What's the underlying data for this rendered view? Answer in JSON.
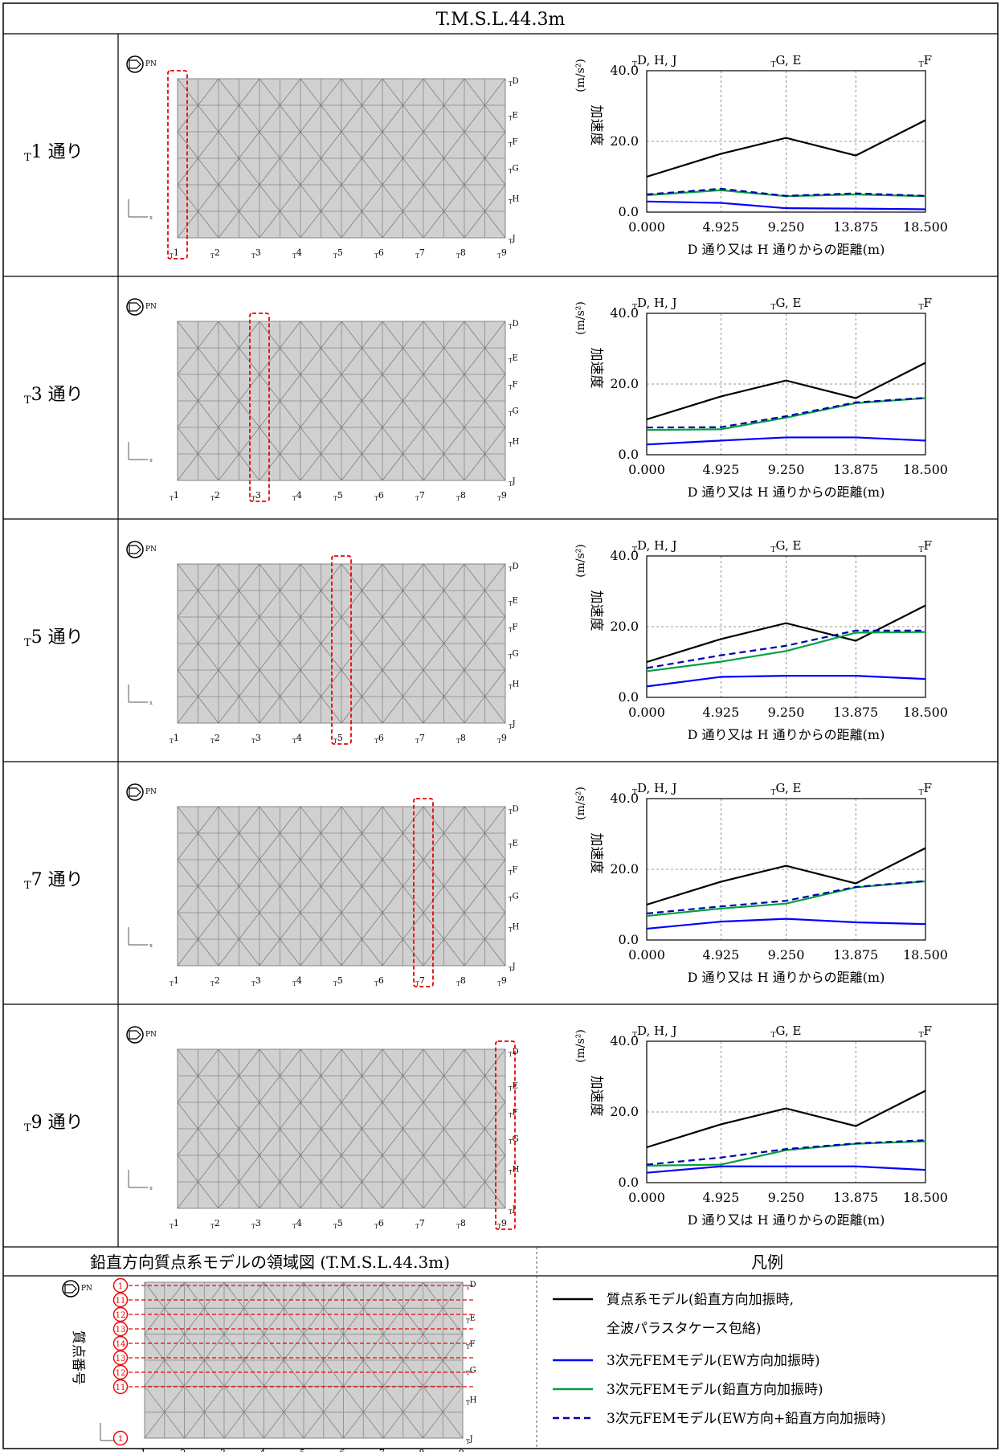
{
  "title": "T.M.S.L.44.3m",
  "rows": [
    {
      "label": "T1 通り",
      "sub": "T",
      "num": "1 通り",
      "highlight_line": 0
    },
    {
      "label": "T3 通り",
      "sub": "T",
      "num": "3 通り",
      "highlight_line": 2
    },
    {
      "label": "T5 通り",
      "sub": "T",
      "num": "5 通り",
      "highlight_line": 4
    },
    {
      "label": "T7 通り",
      "sub": "T",
      "num": "7 通り",
      "highlight_line": 6
    },
    {
      "label": "T9 通り",
      "sub": "T",
      "num": "9 通り",
      "highlight_line": 8
    }
  ],
  "plan": {
    "pn_label": "PN",
    "x_axis_label": "x",
    "col_labels": [
      "1",
      "2",
      "3",
      "4",
      "5",
      "6",
      "7",
      "8",
      "9"
    ],
    "row_labels": [
      "D",
      "E",
      "F",
      "G",
      "H",
      "J"
    ],
    "grid_prefix": "T"
  },
  "chart_common": {
    "top_labels": [
      "D, H, J",
      "G, E",
      "F"
    ],
    "ylabel": "加速度",
    "yunit": "(m/s²)",
    "xlabel": "D 通り又は H 通りからの距離(m)",
    "xlabel_prefix1": "T",
    "xlabel_prefix2": "T",
    "ylim": [
      0,
      40
    ],
    "yticks": [
      "40.0",
      "20.0",
      "0.0"
    ],
    "xticks": [
      "0.000",
      "4.925",
      "9.250",
      "13.875",
      "18.500"
    ],
    "x": [
      0,
      4.925,
      9.25,
      13.875,
      18.5
    ]
  },
  "chart_data": [
    {
      "type": "line",
      "title": "T1 通り",
      "x": [
        0,
        4.925,
        9.25,
        13.875,
        18.5
      ],
      "ylim": [
        0,
        40
      ],
      "series": [
        {
          "name": "質点系モデル(鉛直方向加振時, 全波パラスタケース包絡)",
          "color": "#000000",
          "dash": false,
          "values": [
            10,
            16.5,
            21,
            16,
            26
          ]
        },
        {
          "name": "3次元FEMモデル(EW方向加振時)",
          "color": "#0000ff",
          "dash": false,
          "values": [
            3,
            2.6,
            1.1,
            1,
            0.8
          ]
        },
        {
          "name": "3次元FEMモデル(鉛直方向加振時)",
          "color": "#00a040",
          "dash": false,
          "values": [
            4.8,
            6.2,
            4.5,
            5,
            4.5
          ]
        },
        {
          "name": "3次元FEMモデル(EW方向+鉛直方向加振時)",
          "color": "#0000aa",
          "dash": true,
          "values": [
            5,
            6.6,
            4.6,
            5.3,
            4.6
          ]
        }
      ]
    },
    {
      "type": "line",
      "title": "T3 通り",
      "x": [
        0,
        4.925,
        9.25,
        13.875,
        18.5
      ],
      "ylim": [
        0,
        40
      ],
      "series": [
        {
          "name": "質点系モデル(鉛直方向加振時, 全波パラスタケース包絡)",
          "color": "#000000",
          "dash": false,
          "values": [
            10,
            16.5,
            21,
            16,
            26
          ]
        },
        {
          "name": "3次元FEMモデル(EW方向加振時)",
          "color": "#0000ff",
          "dash": false,
          "values": [
            2.9,
            4,
            4.9,
            4.9,
            4
          ]
        },
        {
          "name": "3次元FEMモデル(鉛直方向加振時)",
          "color": "#00a040",
          "dash": false,
          "values": [
            7,
            7.2,
            10.5,
            14.6,
            16
          ]
        },
        {
          "name": "3次元FEMモデル(EW方向+鉛直方向加振時)",
          "color": "#0000aa",
          "dash": true,
          "values": [
            7.7,
            7.8,
            10.9,
            14.8,
            16.1
          ]
        }
      ]
    },
    {
      "type": "line",
      "title": "T5 通り",
      "x": [
        0,
        4.925,
        9.25,
        13.875,
        18.5
      ],
      "ylim": [
        0,
        40
      ],
      "series": [
        {
          "name": "質点系モデル(鉛直方向加振時, 全波パラスタケース包絡)",
          "color": "#000000",
          "dash": false,
          "values": [
            10,
            16.5,
            21,
            16,
            26
          ]
        },
        {
          "name": "3次元FEMモデル(EW方向加振時)",
          "color": "#0000ff",
          "dash": false,
          "values": [
            3.1,
            5.8,
            6.1,
            6.1,
            5.2
          ]
        },
        {
          "name": "3次元FEMモデル(鉛直方向加振時)",
          "color": "#00a040",
          "dash": false,
          "values": [
            7.4,
            10.1,
            13.1,
            18.3,
            18.5
          ]
        },
        {
          "name": "3次元FEMモデル(EW方向+鉛直方向加振時)",
          "color": "#0000aa",
          "dash": true,
          "values": [
            8.3,
            11.9,
            14.6,
            18.9,
            18.9
          ]
        }
      ]
    },
    {
      "type": "line",
      "title": "T7 通り",
      "x": [
        0,
        4.925,
        9.25,
        13.875,
        18.5
      ],
      "ylim": [
        0,
        40
      ],
      "series": [
        {
          "name": "質点系モデル(鉛直方向加振時, 全波パラスタケース包絡)",
          "color": "#000000",
          "dash": false,
          "values": [
            10,
            16.5,
            21,
            16,
            26
          ]
        },
        {
          "name": "3次元FEMモデル(EW方向加振時)",
          "color": "#0000ff",
          "dash": false,
          "values": [
            3.2,
            5.2,
            6,
            5,
            4.5
          ]
        },
        {
          "name": "3次元FEMモデル(鉛直方向加振時)",
          "color": "#00a040",
          "dash": false,
          "values": [
            6.8,
            8.9,
            10.3,
            14.9,
            16.6
          ]
        },
        {
          "name": "3次元FEMモデル(EW方向+鉛直方向加振時)",
          "color": "#0000aa",
          "dash": true,
          "values": [
            7.5,
            9.5,
            11.1,
            15,
            16.7
          ]
        }
      ]
    },
    {
      "type": "line",
      "title": "T9 通り",
      "x": [
        0,
        4.925,
        9.25,
        13.875,
        18.5
      ],
      "ylim": [
        0,
        40
      ],
      "series": [
        {
          "name": "質点系モデル(鉛直方向加振時, 全波パラスタケース包絡)",
          "color": "#000000",
          "dash": false,
          "values": [
            10,
            16.5,
            21,
            16,
            26
          ]
        },
        {
          "name": "3次元FEMモデル(EW方向加振時)",
          "color": "#0000ff",
          "dash": false,
          "values": [
            2.8,
            4.6,
            4.6,
            4.6,
            3.6
          ]
        },
        {
          "name": "3次元FEMモデル(鉛直方向加振時)",
          "color": "#00a040",
          "dash": false,
          "values": [
            4.8,
            5.1,
            9.2,
            11,
            11.7
          ]
        },
        {
          "name": "3次元FEMモデル(EW方向+鉛直方向加振時)",
          "color": "#0000aa",
          "dash": true,
          "values": [
            5.1,
            7.1,
            9.5,
            11.1,
            12
          ]
        }
      ]
    }
  ],
  "footer": {
    "left_title": "鉛直方向質点系モデルの領域図 (T.M.S.L.44.3m)",
    "right_title": "凡例",
    "mass_point_label": "質点番号",
    "mass_numbers": [
      "1",
      "11",
      "12",
      "13",
      "14",
      "13",
      "12",
      "11",
      "1"
    ],
    "legend": [
      {
        "text1": "質点系モデル(鉛直方向加振時,",
        "text2": "全波パラスタケース包絡)",
        "color": "#000000",
        "dash": false
      },
      {
        "text1": "3次元FEMモデル(EW方向加振時)",
        "color": "#0000ff",
        "dash": false
      },
      {
        "text1": "3次元FEMモデル(鉛直方向加振時)",
        "color": "#00a040",
        "dash": false
      },
      {
        "text1": "3次元FEMモデル(EW方向+鉛直方向加振時)",
        "color": "#0000aa",
        "dash": true
      }
    ]
  }
}
